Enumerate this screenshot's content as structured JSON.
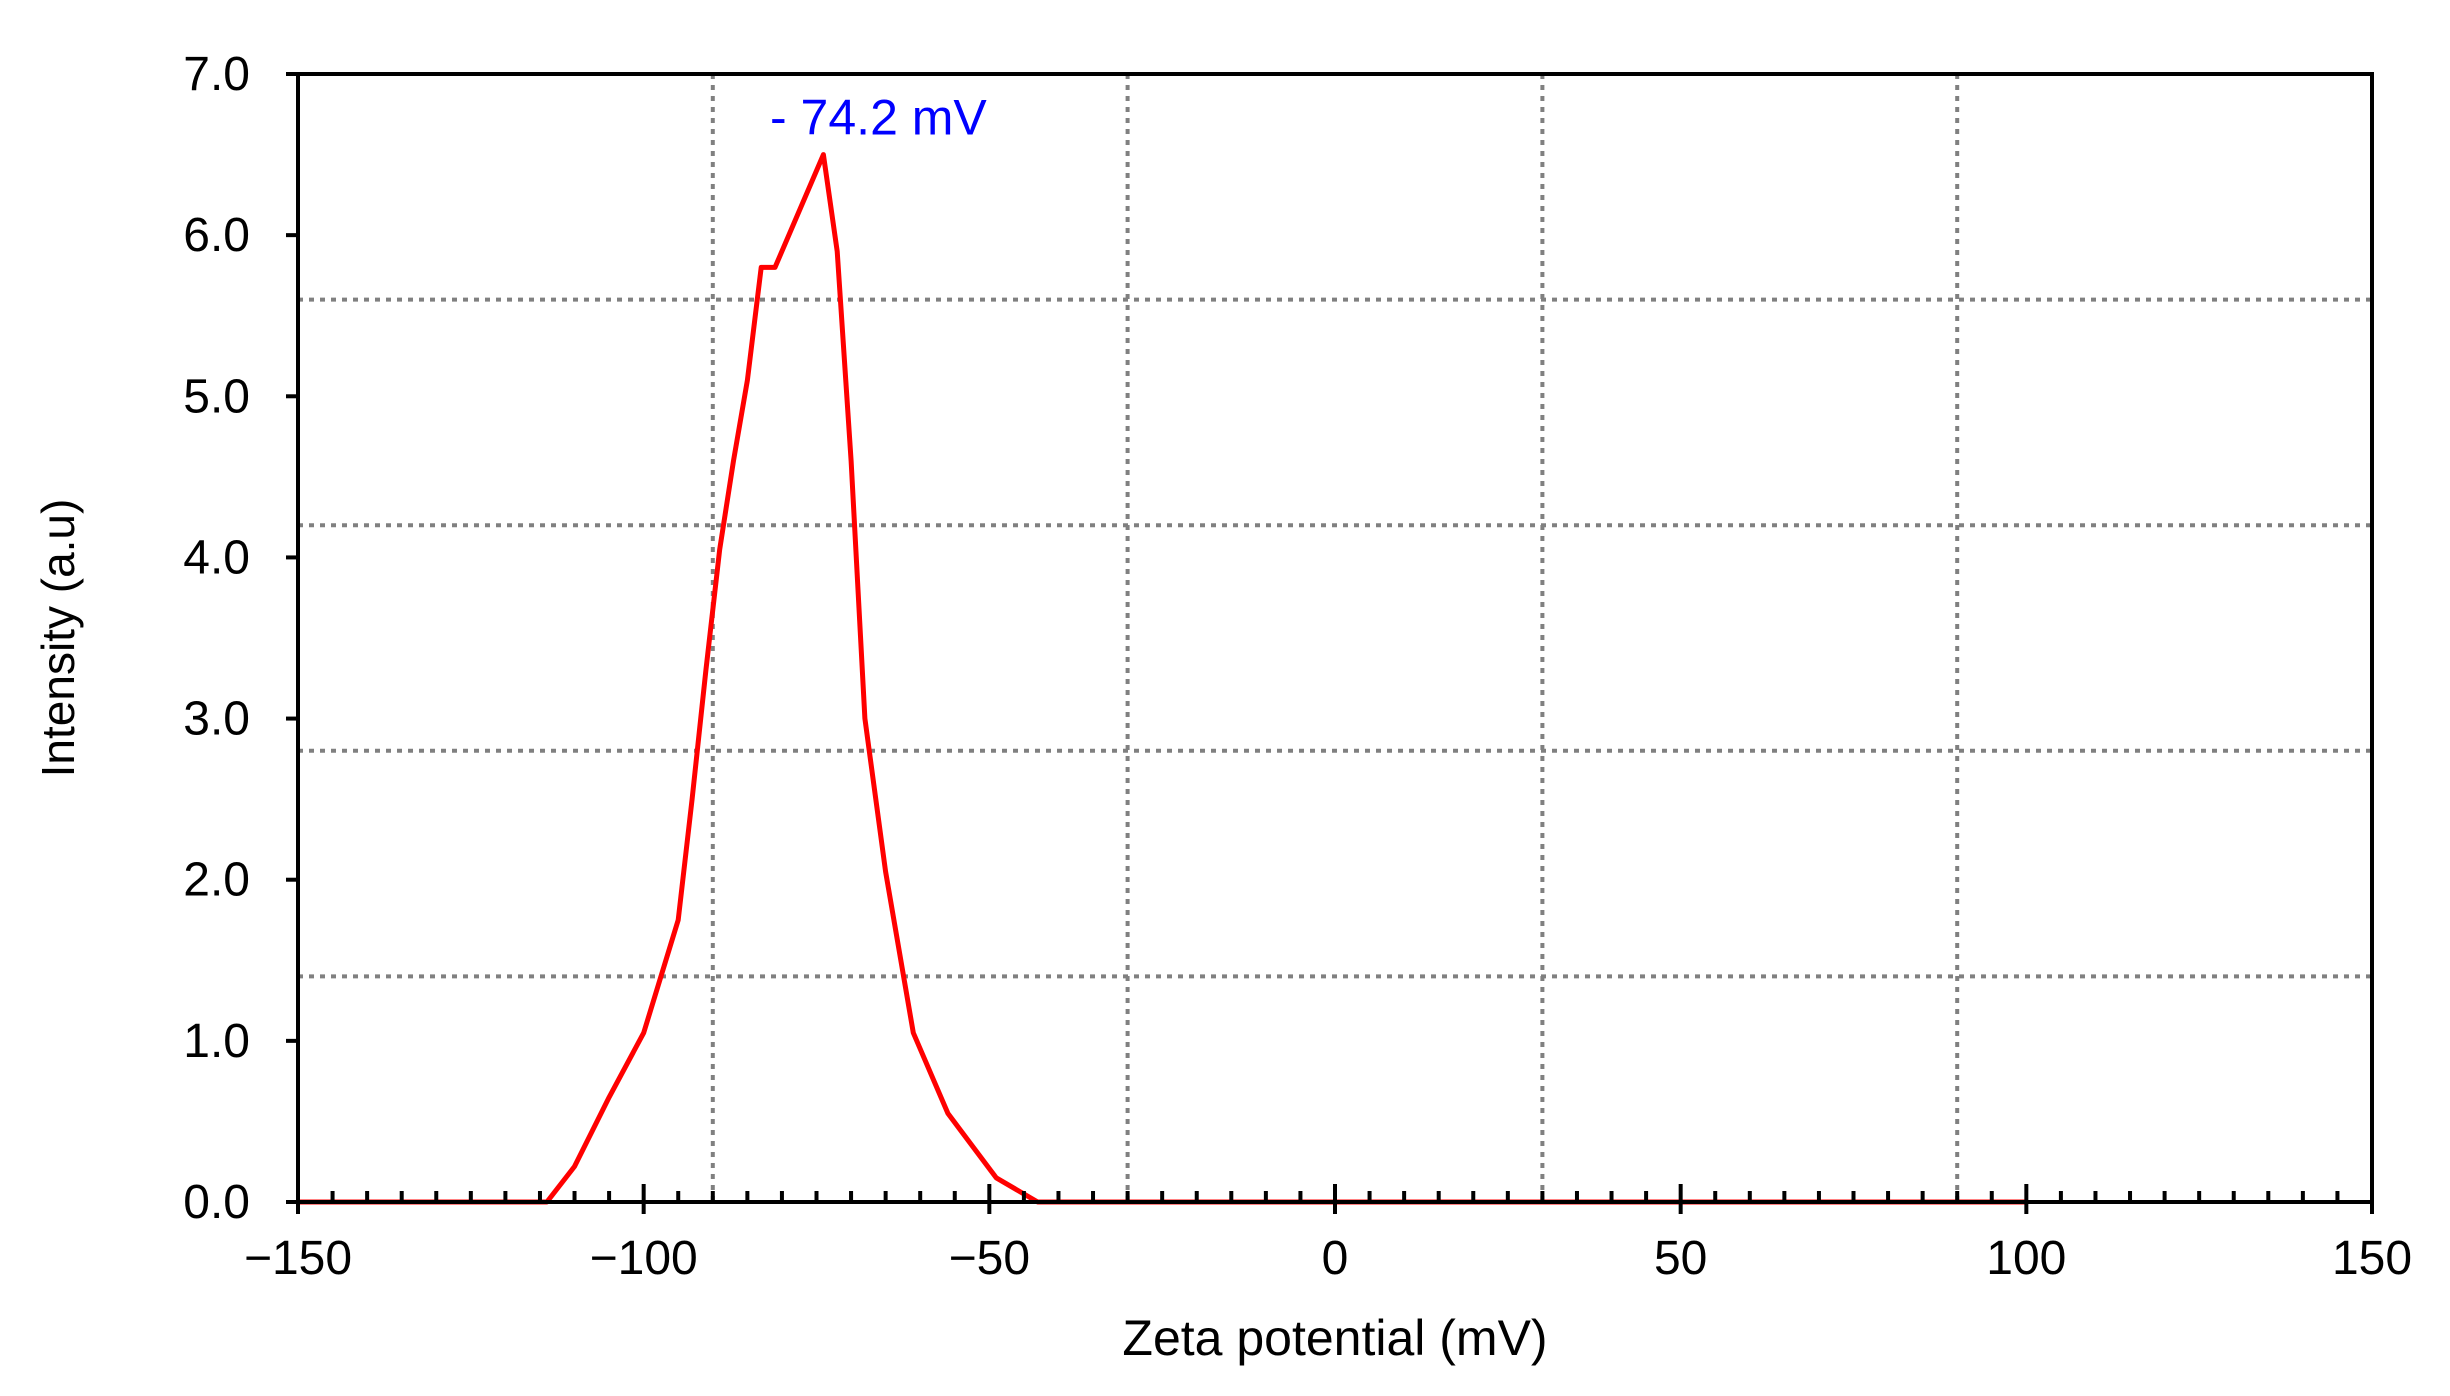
{
  "chart_data": {
    "type": "line",
    "title": "",
    "xlabel": "Zeta potential (mV)",
    "ylabel": "Intensity (a.u)",
    "xlim": [
      -150,
      150
    ],
    "ylim": [
      0,
      7
    ],
    "x_ticks": [
      -150,
      -100,
      -50,
      0,
      50,
      100,
      150
    ],
    "x_tick_labels": [
      "−150",
      "−100",
      "−50",
      "0",
      "50",
      "100",
      "150"
    ],
    "y_ticks": [
      0,
      1,
      2,
      3,
      4,
      5,
      6,
      7
    ],
    "y_tick_labels": [
      "0.0",
      "1.0",
      "2.0",
      "3.0",
      "4.0",
      "5.0",
      "6.0",
      "7.0"
    ],
    "grid": true,
    "grid_x": [
      -90,
      -30,
      30,
      90
    ],
    "grid_y": [
      1.4,
      2.8,
      4.2,
      5.6
    ],
    "series": [
      {
        "color": "#ff0000",
        "x": [
          -150,
          -114,
          -110,
          -105,
          -100,
          -95,
          -93,
          -91,
          -89,
          -87,
          -85,
          -83,
          -81,
          -74,
          -72,
          -70,
          -68,
          -65,
          -61,
          -56,
          -49,
          -43,
          100
        ],
        "y": [
          0,
          0,
          0.22,
          0.65,
          1.05,
          1.75,
          2.5,
          3.3,
          4.05,
          4.6,
          5.1,
          5.8,
          5.8,
          6.5,
          5.9,
          4.6,
          3.0,
          2.05,
          1.05,
          0.55,
          0.15,
          0,
          0
        ]
      }
    ],
    "annotations": [
      {
        "text": "- 74.2 mV",
        "x": -74.2,
        "y": 6.5,
        "color": "#0000ff"
      }
    ]
  }
}
